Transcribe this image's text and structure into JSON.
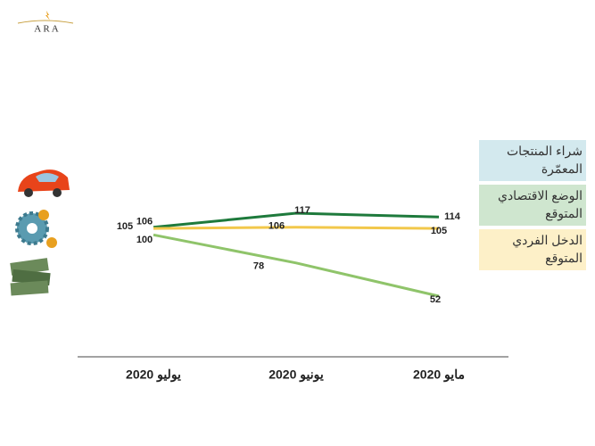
{
  "header": {
    "logo": "A R A"
  },
  "chart_data": {
    "type": "line",
    "categories": [
      "يوليو 2020",
      "يونيو 2020",
      "مايو 2020"
    ],
    "series": [
      {
        "name": "شراء المنتجات المعمّرة",
        "color": "#1e7a3c",
        "legend_color": "#d3e9ee",
        "values": [
          106,
          117,
          114
        ]
      },
      {
        "name": "الوضع  الاقتصادي المتوقع",
        "color": "#8fc46a",
        "legend_color": "#cfe6cf",
        "values": [
          100,
          78,
          52
        ]
      },
      {
        "name": "الدخل الفردي المتوقع",
        "color": "#f2c84b",
        "legend_color": "#fdf0c8",
        "values": [
          105,
          106,
          105
        ]
      }
    ]
  }
}
